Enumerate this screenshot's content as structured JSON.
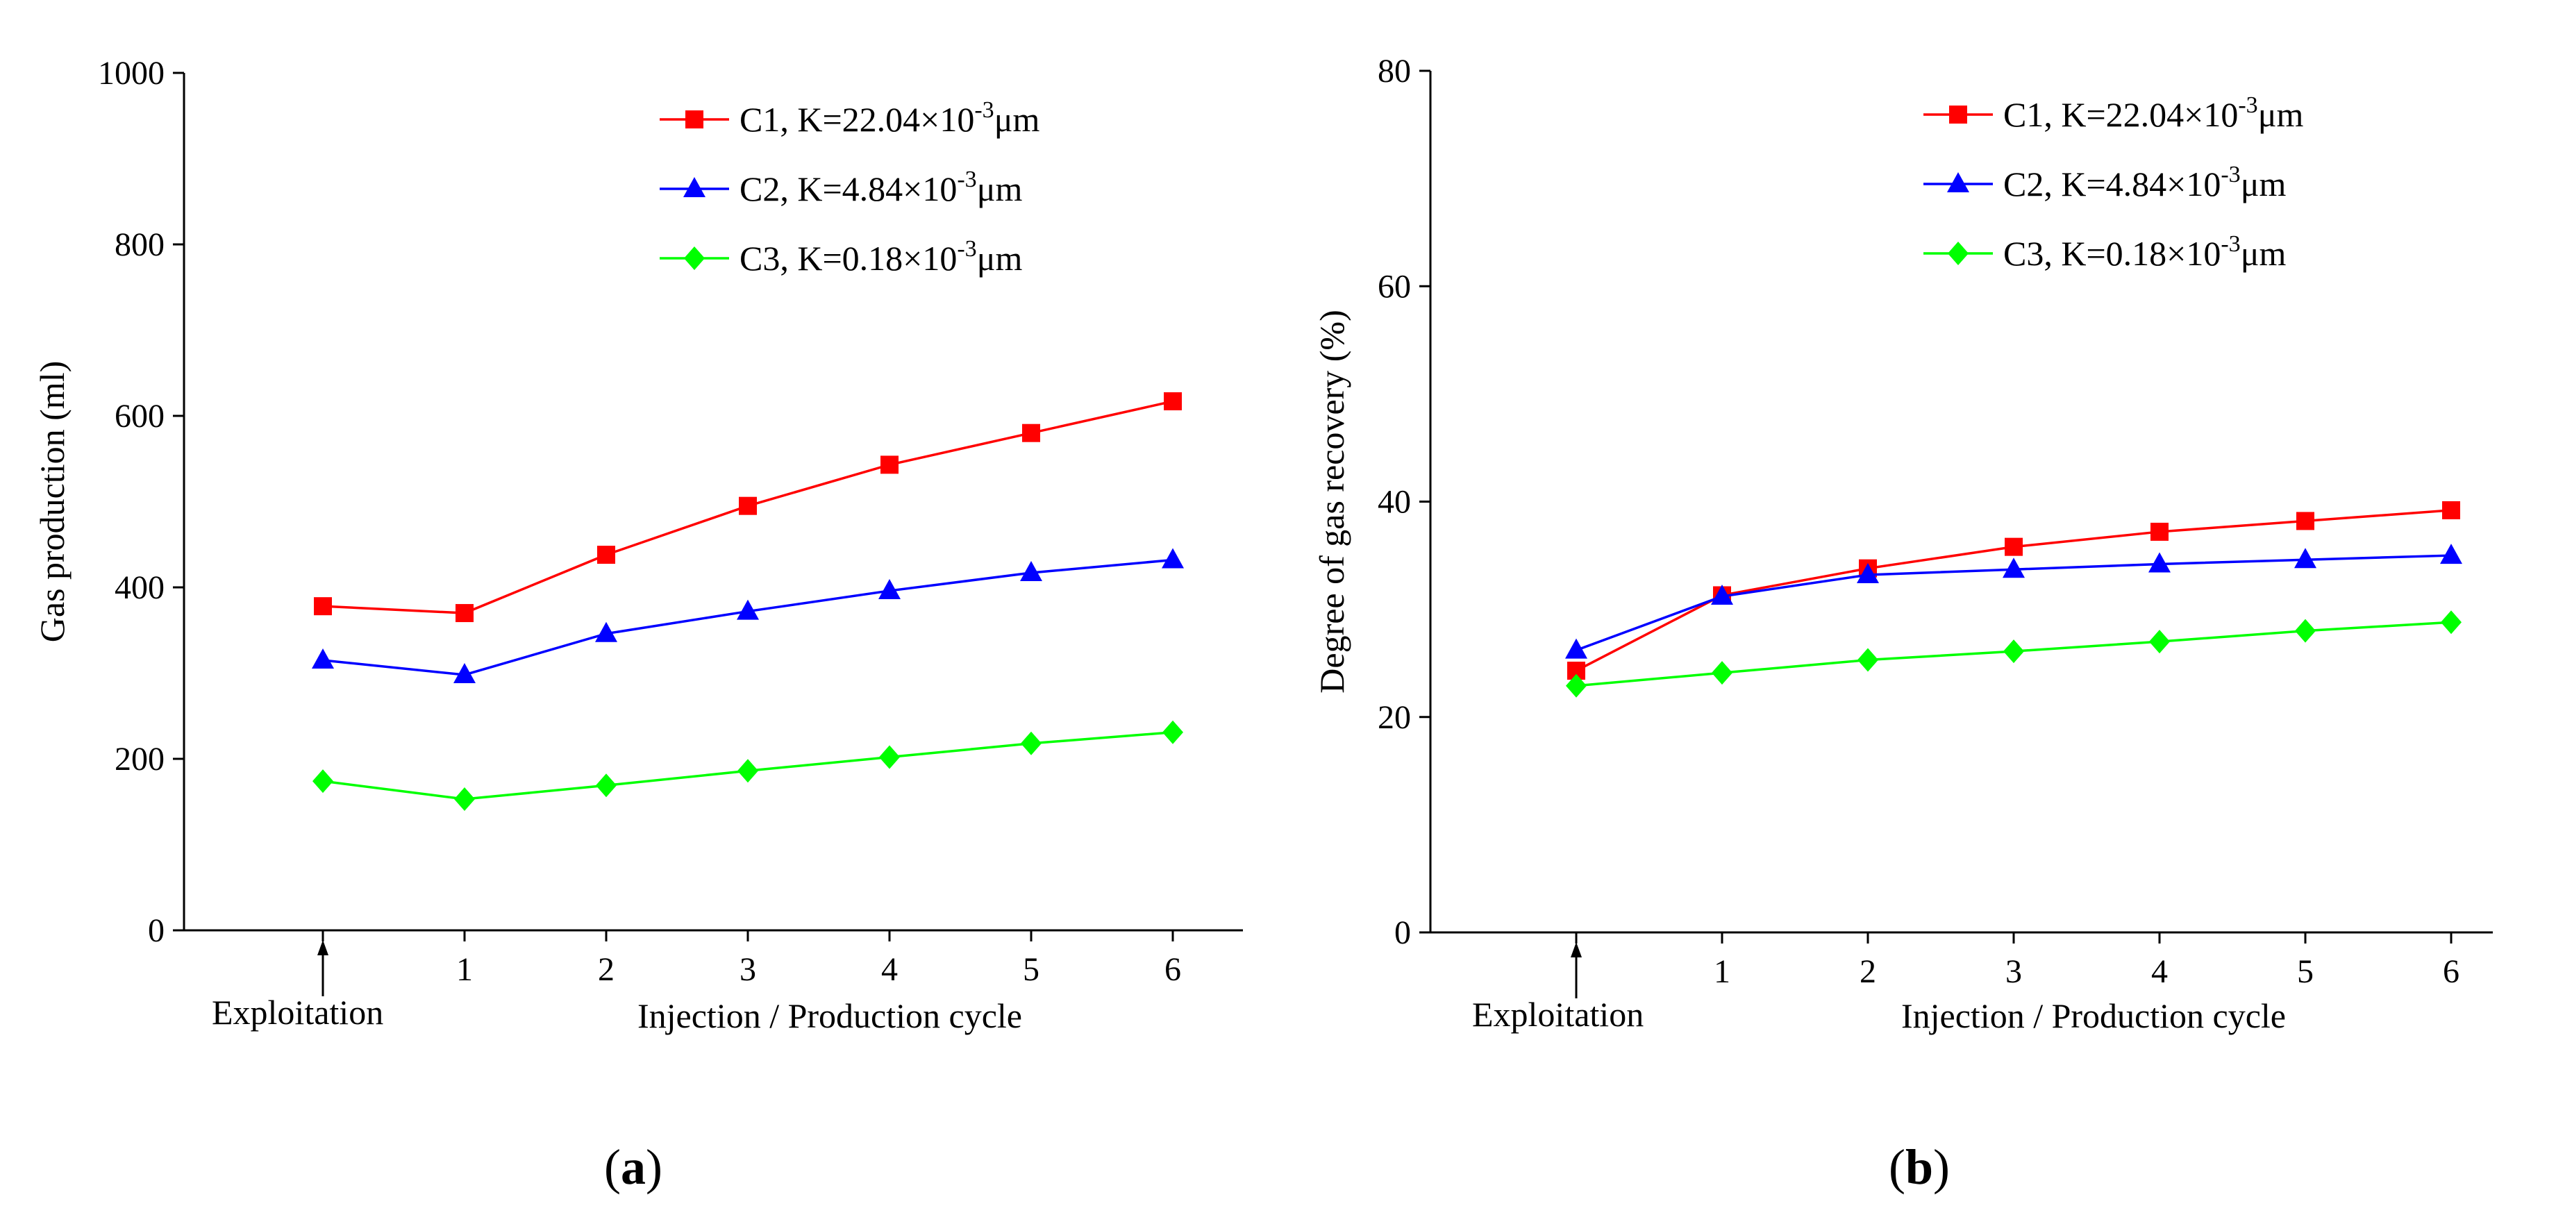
{
  "chart_data": [
    {
      "id": "a",
      "type": "line",
      "panel_label": "a",
      "xlabel": "Injection / Production cycle",
      "ylabel": "Gas production (ml)",
      "x_first_label": "Exploitation",
      "categories": [
        "",
        "1",
        "2",
        "3",
        "4",
        "5",
        "6"
      ],
      "ylim": [
        0,
        1000
      ],
      "yticks": [
        "0",
        "200",
        "400",
        "600",
        "800",
        "1000"
      ],
      "legend_position": "top-right",
      "series": [
        {
          "name_prefix": "C1, K=22.04×10",
          "name_exp": "-3",
          "name_suffix": "μm",
          "color": "#ff0000",
          "marker": "square",
          "values": [
            378,
            370,
            438,
            495,
            543,
            580,
            617
          ]
        },
        {
          "name_prefix": "C2, K=4.84×10",
          "name_exp": "-3",
          "name_suffix": "μm",
          "color": "#0000ff",
          "marker": "triangle",
          "values": [
            315,
            298,
            346,
            372,
            396,
            417,
            432
          ]
        },
        {
          "name_prefix": "C3, K=0.18×10",
          "name_exp": "-3",
          "name_suffix": "μm",
          "color": "#00ff00",
          "marker": "diamond",
          "values": [
            174,
            153,
            169,
            186,
            202,
            218,
            231
          ]
        }
      ]
    },
    {
      "id": "b",
      "type": "line",
      "panel_label": "b",
      "xlabel": "Injection / Production cycle",
      "ylabel": "Degree of gas recovery (%)",
      "x_first_label": "Exploitation",
      "categories": [
        "",
        "1",
        "2",
        "3",
        "4",
        "5",
        "6"
      ],
      "ylim": [
        0,
        80
      ],
      "yticks": [
        "0",
        "20",
        "40",
        "60",
        "80"
      ],
      "legend_position": "top-right",
      "series": [
        {
          "name_prefix": "C1, K=22.04×10",
          "name_exp": "-3",
          "name_suffix": "μm",
          "color": "#ff0000",
          "marker": "square",
          "values": [
            24.3,
            31.3,
            33.8,
            35.8,
            37.2,
            38.2,
            39.2
          ]
        },
        {
          "name_prefix": "C2, K=4.84×10",
          "name_exp": "-3",
          "name_suffix": "μm",
          "color": "#0000ff",
          "marker": "triangle",
          "values": [
            26.2,
            31.2,
            33.2,
            33.7,
            34.2,
            34.6,
            35.0
          ]
        },
        {
          "name_prefix": "C3, K=0.18×10",
          "name_exp": "-3",
          "name_suffix": "μm",
          "color": "#00ff00",
          "marker": "diamond",
          "values": [
            22.9,
            24.1,
            25.3,
            26.1,
            27.0,
            28.0,
            28.8
          ]
        }
      ]
    }
  ]
}
